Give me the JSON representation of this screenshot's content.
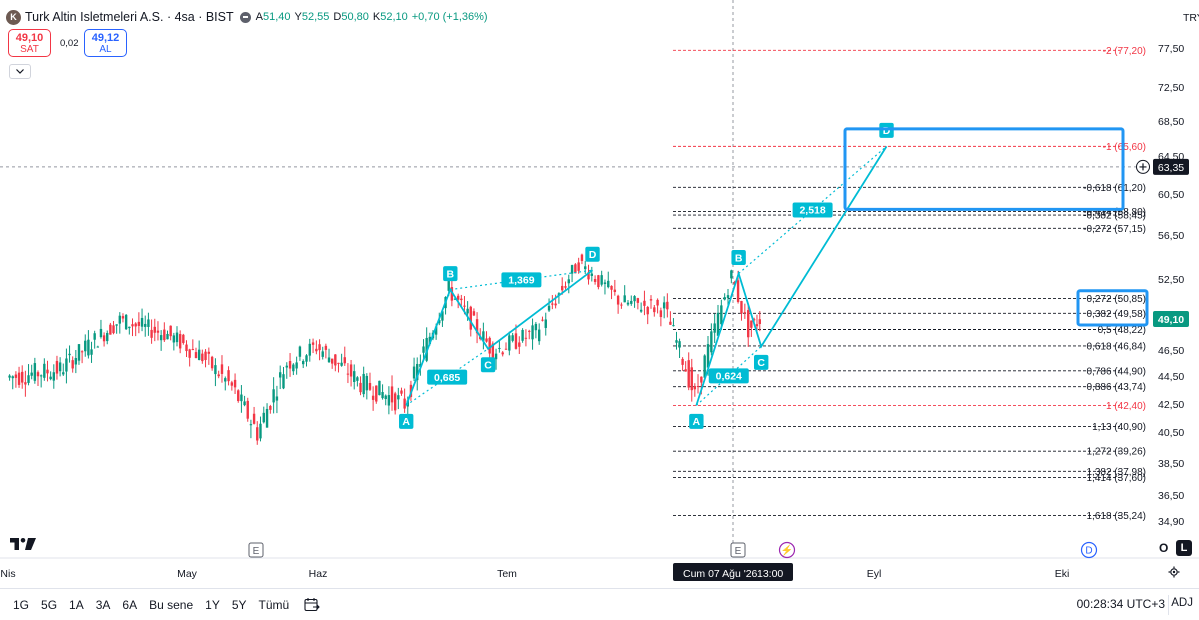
{
  "header": {
    "logo_letter": "K",
    "title": "Turk Altin Isletmeleri A.S. · 4sa · BIST",
    "open_label": "A",
    "open_value": "51,40",
    "high_label": "Y",
    "high_value": "52,55",
    "low_label": "D",
    "low_value": "50,80",
    "close_label": "K",
    "close_value": "52,10",
    "change": "+0,70 (+1,36%)"
  },
  "trade": {
    "sell_price": "49,10",
    "sell_label": "SAT",
    "spread": "0,02",
    "buy_price": "49,12",
    "buy_label": "AL"
  },
  "currency": "TRY",
  "colors": {
    "up": "#089981",
    "down": "#f23645",
    "pattern": "#00bcd4",
    "highlight": "#2196f3",
    "red_level": "#f23645"
  },
  "bottom": {
    "ranges": [
      "1G",
      "5G",
      "1A",
      "3A",
      "6A",
      "Bu sene",
      "1Y",
      "5Y",
      "Tümü"
    ],
    "clock": "00:28:34 UTC+3",
    "adj": "ADJ"
  },
  "buttons": {
    "o": "O",
    "l": "L"
  },
  "chart_data": {
    "type": "candlestick",
    "title": "Turk Altin Isletmeleri A.S. · 4sa · BIST",
    "yaxis_ticks": [
      "77,50",
      "72,50",
      "68,50",
      "64,50",
      "60,50",
      "56,50",
      "52,50",
      "46,50",
      "44,50",
      "42,50",
      "40,50",
      "38,50",
      "36,50",
      "34,90"
    ],
    "y_labels": [
      {
        "label": "77,50",
        "value": 77.5
      },
      {
        "label": "72,50",
        "value": 72.5
      },
      {
        "label": "68,50",
        "value": 68.5
      },
      {
        "label": "64,50",
        "value": 64.5
      },
      {
        "label": "60,50",
        "value": 60.5
      },
      {
        "label": "56,50",
        "value": 56.5
      },
      {
        "label": "52,50",
        "value": 52.5
      },
      {
        "label": "46,50",
        "value": 46.5
      },
      {
        "label": "44,50",
        "value": 44.5
      },
      {
        "label": "42,50",
        "value": 42.5
      },
      {
        "label": "40,50",
        "value": 40.5
      },
      {
        "label": "38,50",
        "value": 38.5
      },
      {
        "label": "36,50",
        "value": 36.5
      },
      {
        "label": "34,90",
        "value": 34.9
      }
    ],
    "xaxis_ticks": [
      {
        "label": "Nis",
        "date": "2026-04-01"
      },
      {
        "label": "May",
        "date": "2026-05-01"
      },
      {
        "label": "Haz",
        "date": "2026-06-01"
      },
      {
        "label": "Tem",
        "date": "2026-07-01"
      },
      {
        "label": "Eyl",
        "date": "2026-09-01"
      },
      {
        "label": "Eki",
        "date": "2026-10-01"
      }
    ],
    "crosshair": {
      "date_label": "Cum 07 Ağu '26",
      "time_label": "13:00",
      "price_label": "63,35",
      "price": 63.35
    },
    "last_price": {
      "label": "49,10",
      "value": 49.1
    },
    "price_series_approx": [
      {
        "date": "2026-04-01",
        "close": 44.4
      },
      {
        "date": "2026-04-10",
        "close": 45.0
      },
      {
        "date": "2026-04-20",
        "close": 49.0
      },
      {
        "date": "2026-04-28",
        "close": 47.8
      },
      {
        "date": "2026-05-05",
        "close": 46.0
      },
      {
        "date": "2026-05-12",
        "close": 43.7
      },
      {
        "date": "2026-05-18",
        "close": 40.5
      },
      {
        "date": "2026-05-25",
        "close": 45.5
      },
      {
        "date": "2026-06-01",
        "close": 46.8
      },
      {
        "date": "2026-06-08",
        "close": 44.0
      },
      {
        "date": "2026-06-15",
        "close": 42.5
      },
      {
        "date": "2026-06-22",
        "close": 51.6
      },
      {
        "date": "2026-06-29",
        "close": 46.4
      },
      {
        "date": "2026-07-06",
        "close": 48.0
      },
      {
        "date": "2026-07-13",
        "close": 54.0
      },
      {
        "date": "2026-07-20",
        "close": 50.5
      },
      {
        "date": "2026-07-27",
        "close": 50.0
      },
      {
        "date": "2026-08-01",
        "close": 43.0
      },
      {
        "date": "2026-08-07",
        "close": 52.8
      },
      {
        "date": "2026-08-10",
        "close": 48.2
      },
      {
        "date": "2026-08-12",
        "close": 49.1
      }
    ],
    "patterns": [
      {
        "points": [
          {
            "label": "A",
            "date": "2026-06-15",
            "price": 42.4
          },
          {
            "label": "B",
            "date": "2026-06-22",
            "price": 51.6
          },
          {
            "label": "C",
            "date": "2026-06-28",
            "price": 46.6
          },
          {
            "label": "D",
            "date": "2026-07-15",
            "price": 53.3
          }
        ],
        "ratios": [
          {
            "label": "1,369",
            "between": "B-D"
          },
          {
            "label": "0,685",
            "between": "A-C"
          }
        ]
      },
      {
        "points": [
          {
            "label": "A",
            "date": "2026-08-01",
            "price": 42.4
          },
          {
            "label": "B",
            "date": "2026-08-08",
            "price": 53.0
          },
          {
            "label": "C",
            "date": "2026-08-12",
            "price": 46.8
          },
          {
            "label": "D",
            "date": "2026-09-03",
            "price": 65.6
          }
        ],
        "ratios": [
          {
            "label": "2,518",
            "between": "B-D"
          },
          {
            "label": "0,624",
            "between": "A-C"
          }
        ]
      }
    ],
    "fib_levels": [
      {
        "label": "-2 (77,20)",
        "value": 77.2,
        "color": "red"
      },
      {
        "label": "-1 (65,60)",
        "value": 65.6,
        "color": "red"
      },
      {
        "label": "-0,618 (61,20)",
        "value": 61.2
      },
      {
        "label": "-0,414 (58,80)",
        "value": 58.8
      },
      {
        "label": "-0,382 (58,45)",
        "value": 58.45
      },
      {
        "label": "-0,272 (57,15)",
        "value": 57.15
      },
      {
        "label": "0,272 (50,85)",
        "value": 50.85
      },
      {
        "label": "0,382 (49,58)",
        "value": 49.58
      },
      {
        "label": "0,5 (48,22)",
        "value": 48.22
      },
      {
        "label": "0,618 (46,84)",
        "value": 46.84
      },
      {
        "label": "0,786 (44,90)",
        "value": 44.9
      },
      {
        "label": "0,886 (43,74)",
        "value": 43.74
      },
      {
        "label": "1 (42,40)",
        "value": 42.4,
        "color": "red"
      },
      {
        "label": "1,13 (40,90)",
        "value": 40.9
      },
      {
        "label": "1,272 (39,26)",
        "value": 39.26
      },
      {
        "label": "1,382 (37,98)",
        "value": 37.98
      },
      {
        "label": "1,414 (37,60)",
        "value": 37.6
      },
      {
        "label": "1,618 (35,24)",
        "value": 35.24
      }
    ],
    "events": [
      "E",
      "E",
      "⚡",
      "D"
    ],
    "grid": false,
    "legend": "none"
  }
}
